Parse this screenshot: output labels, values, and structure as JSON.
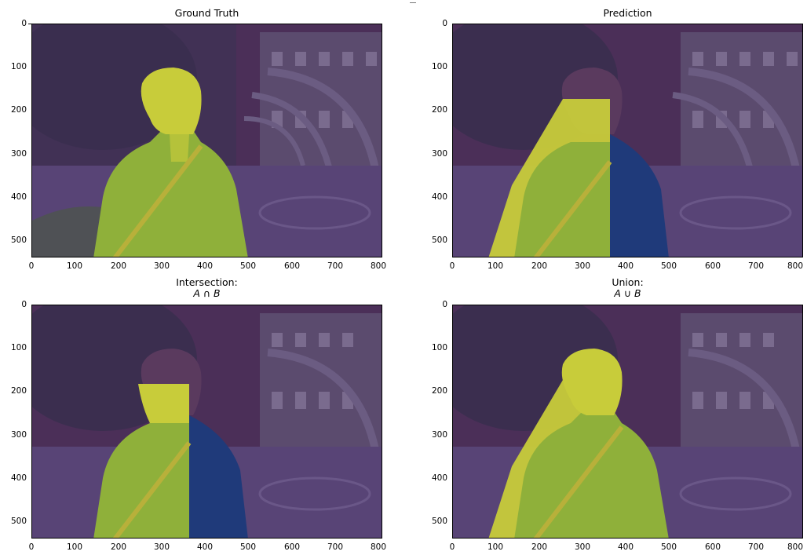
{
  "figure": {
    "panels": [
      {
        "id": "gt",
        "title": "Ground Truth",
        "subtitle": "",
        "mask": "ground-truth"
      },
      {
        "id": "pred",
        "title": "Prediction",
        "subtitle": "",
        "mask": "prediction"
      },
      {
        "id": "inter",
        "title": "Intersection:",
        "subtitle": "A ∩ B",
        "mask": "intersection"
      },
      {
        "id": "union",
        "title": "Union:",
        "subtitle": "A ∪ B",
        "mask": "union"
      }
    ],
    "x_ticks": [
      "0",
      "100",
      "200",
      "300",
      "400",
      "500",
      "600",
      "700",
      "800"
    ],
    "y_ticks": [
      "0",
      "100",
      "200",
      "300",
      "400",
      "500"
    ],
    "colors": {
      "background_overlay": "#4b2f58",
      "mask_yellow": "#c8cc3a",
      "mask_green": "#8fb03a",
      "excluded_blue": "#1f3a7a",
      "axis": "#000000"
    }
  }
}
